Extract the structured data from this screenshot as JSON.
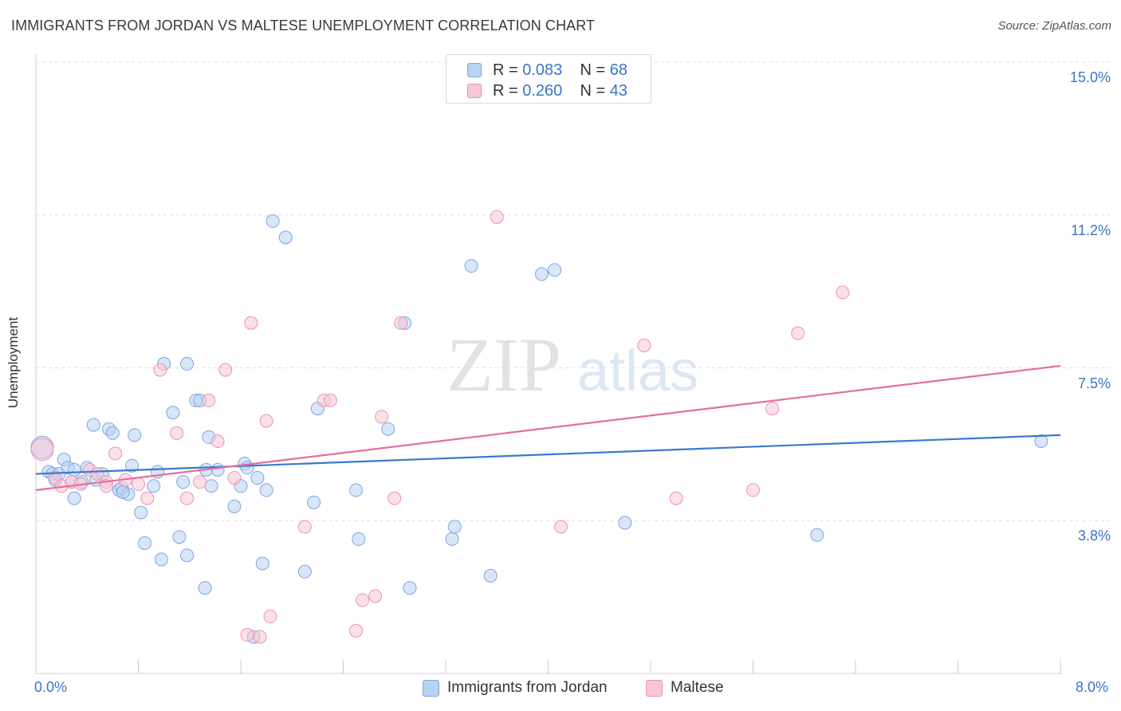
{
  "title": "IMMIGRANTS FROM JORDAN VS MALTESE UNEMPLOYMENT CORRELATION CHART",
  "source": "Source: ZipAtlas.com",
  "watermark": {
    "zip": "ZIP",
    "atlas": "atlas"
  },
  "legend": {
    "rows": [
      {
        "r_label": "R = ",
        "r_value": "0.083",
        "n_label": "N = ",
        "n_value": "68"
      },
      {
        "r_label": "R = ",
        "r_value": "0.260",
        "n_label": "N = ",
        "n_value": "43"
      }
    ]
  },
  "colors": {
    "jordan_fill": "#b8d2f2",
    "jordan_stroke": "#7aa6e0",
    "jordan_line": "#3a78d0",
    "maltese_fill": "#f8c6d6",
    "maltese_stroke": "#ea93b2",
    "maltese_line": "#e46f99",
    "tick_label": "#3b74c7",
    "grid": "#dddddd"
  },
  "chart_data": {
    "type": "scatter",
    "title": "IMMIGRANTS FROM JORDAN VS MALTESE UNEMPLOYMENT CORRELATION CHART",
    "xlabel": "",
    "ylabel": "Unemployment",
    "xlim": [
      0,
      8.0
    ],
    "ylim": [
      0,
      15.0
    ],
    "x_tick_labels": [
      "0.0%",
      "8.0%"
    ],
    "y_ticks": [
      {
        "value": 3.75,
        "label": "3.8%"
      },
      {
        "value": 7.5,
        "label": "7.5%"
      },
      {
        "value": 11.25,
        "label": "11.2%"
      },
      {
        "value": 15.0,
        "label": "15.0%"
      }
    ],
    "grid": true,
    "legend_position": "top-center",
    "series": [
      {
        "name": "Immigrants from Jordan",
        "r": 0.083,
        "n": 68,
        "trend": [
          [
            0,
            4.9
          ],
          [
            8.0,
            5.85
          ]
        ],
        "points": [
          [
            0.05,
            5.55
          ],
          [
            0.1,
            4.95
          ],
          [
            0.13,
            4.9
          ],
          [
            0.15,
            4.75
          ],
          [
            0.18,
            4.9
          ],
          [
            0.22,
            5.25
          ],
          [
            0.25,
            5.05
          ],
          [
            0.28,
            4.7
          ],
          [
            0.3,
            4.3
          ],
          [
            0.36,
            4.7
          ],
          [
            0.4,
            5.05
          ],
          [
            0.45,
            6.1
          ],
          [
            0.47,
            4.75
          ],
          [
            0.52,
            4.9
          ],
          [
            0.57,
            6.0
          ],
          [
            0.6,
            5.9
          ],
          [
            0.65,
            4.5
          ],
          [
            0.67,
            4.55
          ],
          [
            0.72,
            4.4
          ],
          [
            0.75,
            5.1
          ],
          [
            0.77,
            5.85
          ],
          [
            0.82,
            3.95
          ],
          [
            0.85,
            3.2
          ],
          [
            0.92,
            4.6
          ],
          [
            0.95,
            4.95
          ],
          [
            0.98,
            2.8
          ],
          [
            1.07,
            6.4
          ],
          [
            1.12,
            3.35
          ],
          [
            1.15,
            4.7
          ],
          [
            1.18,
            2.9
          ],
          [
            1.25,
            6.7
          ],
          [
            1.35,
            5.8
          ],
          [
            1.37,
            4.6
          ],
          [
            1.42,
            5.0
          ],
          [
            1.0,
            7.6
          ],
          [
            1.18,
            7.6
          ],
          [
            1.28,
            6.7
          ],
          [
            1.33,
            5.0
          ],
          [
            1.55,
            4.1
          ],
          [
            1.6,
            4.6
          ],
          [
            1.63,
            5.15
          ],
          [
            1.65,
            5.05
          ],
          [
            1.7,
            0.9
          ],
          [
            1.73,
            4.8
          ],
          [
            1.77,
            2.7
          ],
          [
            1.8,
            4.5
          ],
          [
            1.85,
            11.1
          ],
          [
            1.95,
            10.7
          ],
          [
            2.1,
            2.5
          ],
          [
            2.17,
            4.2
          ],
          [
            2.2,
            6.5
          ],
          [
            2.5,
            4.5
          ],
          [
            2.52,
            3.3
          ],
          [
            2.75,
            6.0
          ],
          [
            2.88,
            8.6
          ],
          [
            2.92,
            2.1
          ],
          [
            3.25,
            3.3
          ],
          [
            3.27,
            3.6
          ],
          [
            3.4,
            10.0
          ],
          [
            3.55,
            2.4
          ],
          [
            3.95,
            9.8
          ],
          [
            4.05,
            9.9
          ],
          [
            4.6,
            3.7
          ],
          [
            6.1,
            3.4
          ],
          [
            7.85,
            5.7
          ],
          [
            1.32,
            2.1
          ],
          [
            0.68,
            4.45
          ],
          [
            0.3,
            5.0
          ]
        ]
      },
      {
        "name": "Maltese",
        "r": 0.26,
        "n": 43,
        "trend": [
          [
            0,
            4.5
          ],
          [
            8.0,
            7.55
          ]
        ],
        "points": [
          [
            0.05,
            5.5
          ],
          [
            0.15,
            4.8
          ],
          [
            0.2,
            4.6
          ],
          [
            0.28,
            4.7
          ],
          [
            0.35,
            4.65
          ],
          [
            0.42,
            5.0
          ],
          [
            0.48,
            4.9
          ],
          [
            0.55,
            4.7
          ],
          [
            0.62,
            5.4
          ],
          [
            0.7,
            4.75
          ],
          [
            0.8,
            4.65
          ],
          [
            0.87,
            4.3
          ],
          [
            0.97,
            7.45
          ],
          [
            1.1,
            5.9
          ],
          [
            1.18,
            4.3
          ],
          [
            1.28,
            4.7
          ],
          [
            1.35,
            6.7
          ],
          [
            1.42,
            5.7
          ],
          [
            1.48,
            7.45
          ],
          [
            1.55,
            4.8
          ],
          [
            1.65,
            0.95
          ],
          [
            1.68,
            8.6
          ],
          [
            1.75,
            0.9
          ],
          [
            1.8,
            6.2
          ],
          [
            1.83,
            1.4
          ],
          [
            2.1,
            3.6
          ],
          [
            2.25,
            6.7
          ],
          [
            2.3,
            6.7
          ],
          [
            2.5,
            1.05
          ],
          [
            2.55,
            1.8
          ],
          [
            2.65,
            1.9
          ],
          [
            2.7,
            6.3
          ],
          [
            2.8,
            4.3
          ],
          [
            2.85,
            8.6
          ],
          [
            3.6,
            11.2
          ],
          [
            4.1,
            3.6
          ],
          [
            4.75,
            8.05
          ],
          [
            5.0,
            4.3
          ],
          [
            5.6,
            4.5
          ],
          [
            5.75,
            6.5
          ],
          [
            5.95,
            8.35
          ],
          [
            6.3,
            9.35
          ],
          [
            0.55,
            4.6
          ]
        ]
      }
    ]
  }
}
